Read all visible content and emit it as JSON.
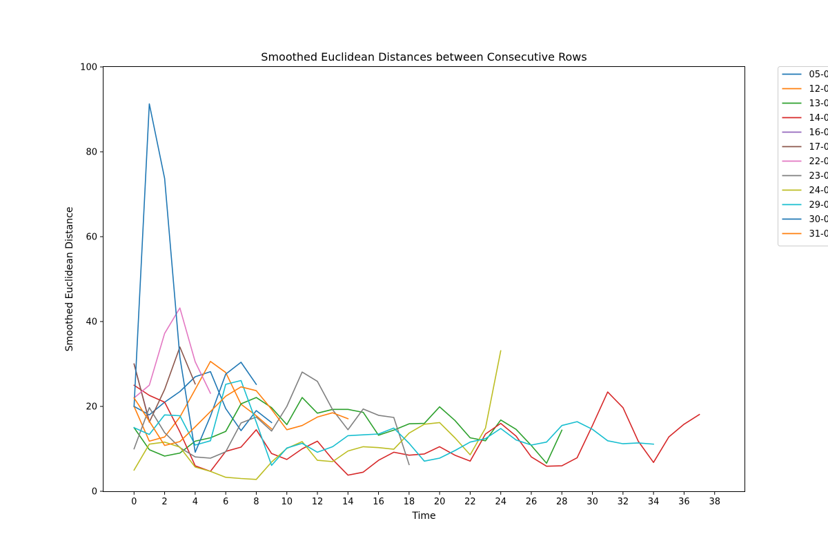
{
  "chart_data": {
    "type": "line",
    "title": "Smoothed Euclidean Distances between Consecutive Rows",
    "xlabel": "Time",
    "ylabel": "Smoothed Euclidean Distance",
    "xlim": [
      -2,
      40
    ],
    "ylim": [
      0,
      100
    ],
    "xticks": [
      0,
      2,
      4,
      6,
      8,
      10,
      12,
      14,
      16,
      18,
      20,
      22,
      24,
      26,
      28,
      30,
      32,
      34,
      36,
      38
    ],
    "yticks": [
      0,
      20,
      40,
      60,
      80,
      100
    ],
    "grid": false,
    "legend": "outside-top-right",
    "series": [
      {
        "name": "05-0",
        "color": "#1f77b4",
        "values": [
          20,
          18,
          21,
          23.5,
          27,
          28.2,
          19.5,
          14.3,
          19,
          16.2
        ]
      },
      {
        "name": "12-0",
        "color": "#ff7f0e",
        "values": [
          20,
          11.8,
          12.8,
          17.5,
          24,
          30.6,
          28,
          20.5,
          17.8,
          14.7
        ]
      },
      {
        "name": "13-0",
        "color": "#2ca02c",
        "values": [
          15,
          9.8,
          8.3,
          9,
          11.8,
          12.6,
          14.1,
          20.6,
          22.1,
          19.7,
          15.7,
          22.1,
          18.4,
          19.3,
          19.3,
          18.6,
          13.2,
          14.4,
          15.9,
          16,
          19.9,
          16.7,
          12.6,
          11.9,
          16.8,
          14.6,
          10.8,
          6.6,
          14.4
        ]
      },
      {
        "name": "14-0",
        "color": "#d62728",
        "values": [
          25,
          22.6,
          21,
          14,
          6,
          4.7,
          9.4,
          10.4,
          14.5,
          8.9,
          7.5,
          10,
          11.8,
          7.5,
          3.8,
          4.5,
          7.3,
          9.2,
          8.5,
          8.8,
          10.5,
          8.5,
          7.1,
          13.5,
          16,
          13,
          8.1,
          5.9,
          6,
          7.9,
          15.5,
          23.4,
          19.7,
          11.8,
          6.8,
          12.8,
          15.8,
          18.1
        ]
      },
      {
        "name": "16-0",
        "color": "#9467bd",
        "values": [
          30,
          16.5
        ]
      },
      {
        "name": "17-0",
        "color": "#8c564b",
        "values": [
          30,
          16.3,
          24,
          34,
          25.3
        ]
      },
      {
        "name": "22-0",
        "color": "#e377c2",
        "values": [
          22,
          25,
          37.2,
          43.2,
          30.5,
          23.1
        ]
      },
      {
        "name": "23-0",
        "color": "#7f7f7f",
        "values": [
          10,
          19.7,
          13.8,
          10.3,
          8.1,
          7.8,
          9.3,
          16.1,
          17.5,
          14.2,
          20,
          28.1,
          25.9,
          19.2,
          14.5,
          19.4,
          17.9,
          17.4,
          6.3
        ]
      },
      {
        "name": "24-0",
        "color": "#bcbd22",
        "values": [
          5,
          11.1,
          11.6,
          10.4,
          5.7,
          4.7,
          3.3,
          3,
          2.8,
          6.9,
          10.1,
          11.7,
          7.3,
          7,
          9.5,
          10.5,
          10.3,
          9.9,
          13.7,
          15.8,
          16.2,
          12.6,
          8.6,
          14.9,
          33.1
        ]
      },
      {
        "name": "29-0",
        "color": "#17becf",
        "values": [
          15,
          13.4,
          18,
          17.8,
          10.9,
          11.9,
          25.2,
          26.1,
          16.3,
          6.1,
          10.2,
          11.3,
          9.2,
          10.5,
          13.1,
          13.3,
          13.5,
          14.9,
          11.3,
          7.1,
          7.8,
          9.6,
          11.6,
          12.4,
          14.8,
          12.1,
          10.9,
          11.6,
          15.5,
          16.4,
          14.6,
          11.9,
          11.2,
          11.4,
          11.1
        ]
      },
      {
        "name": "30-0",
        "color": "#1f77b4",
        "values": [
          20,
          91.3,
          73.7,
          31.6,
          9.2,
          17.7,
          27.6,
          30.4,
          25.2
        ]
      },
      {
        "name": "31-0",
        "color": "#ff7f0e",
        "values": [
          22,
          16.5,
          10.8,
          11.7,
          15.2,
          18.8,
          22.4,
          24.6,
          23.7,
          19.3,
          14.5,
          15.5,
          17.5,
          18.5,
          17.1
        ]
      }
    ]
  }
}
